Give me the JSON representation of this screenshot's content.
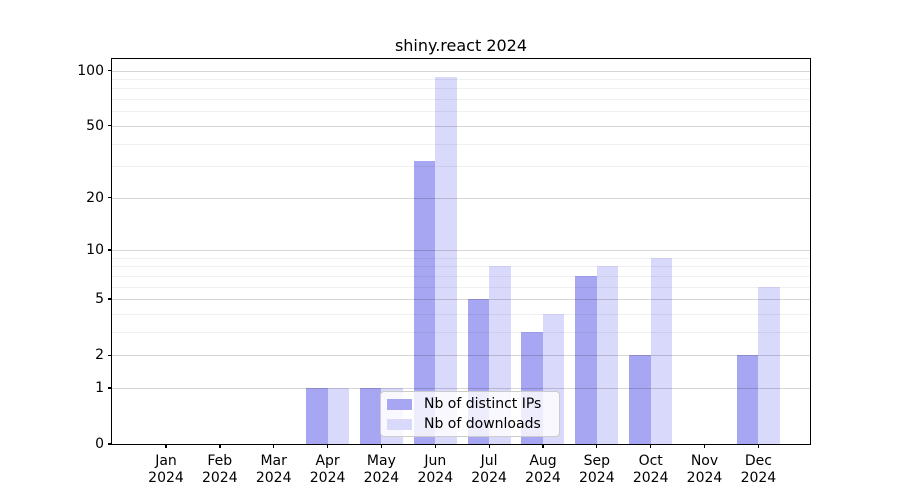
{
  "chart_data": {
    "type": "bar",
    "title": "shiny.react 2024",
    "x_months": [
      "Jan",
      "Feb",
      "Mar",
      "Apr",
      "May",
      "Jun",
      "Jul",
      "Aug",
      "Sep",
      "Oct",
      "Nov",
      "Dec"
    ],
    "x_year": "2024",
    "series": [
      {
        "name": "Nb of distinct IPs",
        "color": "#a6a6f2",
        "values": [
          0,
          0,
          0,
          1,
          1,
          32,
          5,
          3,
          7,
          2,
          0,
          2
        ]
      },
      {
        "name": "Nb of downloads",
        "color": "#d9d9fb",
        "values": [
          0,
          0,
          0,
          1,
          1,
          92,
          8,
          4,
          8,
          9,
          0,
          6
        ]
      }
    ],
    "y_scale": "log1p",
    "y_ticks": [
      0,
      1,
      2,
      5,
      10,
      20,
      50,
      100
    ],
    "y_minor_ticks": [
      3,
      4,
      6,
      7,
      8,
      9,
      30,
      40,
      60,
      70,
      80,
      90
    ],
    "ylim": [
      0,
      108
    ],
    "grid": "on",
    "legend_position": "lower-center"
  }
}
